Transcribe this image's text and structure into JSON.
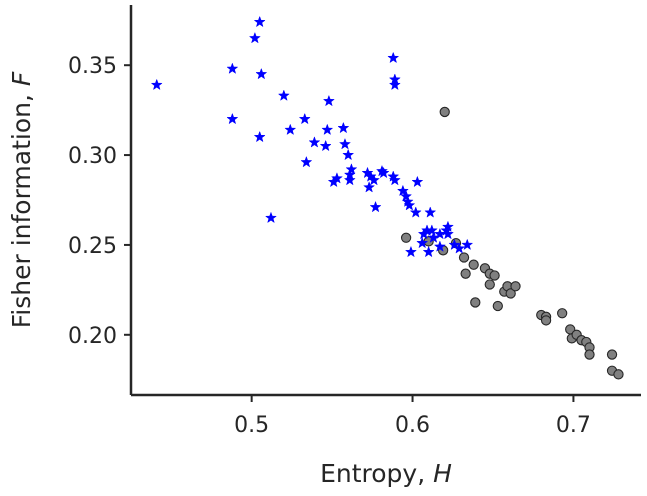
{
  "chart_data": {
    "type": "scatter",
    "xlabel": {
      "text": "Entropy, ",
      "var": "H"
    },
    "ylabel": {
      "text": "Fisher information, ",
      "var": "F"
    },
    "xlim": [
      0.425,
      0.742
    ],
    "ylim": [
      0.1665,
      0.3835
    ],
    "xticks": [
      0.5,
      0.6,
      0.7
    ],
    "xtick_labels": [
      "0.5",
      "0.6",
      "0.7"
    ],
    "yticks": [
      0.2,
      0.25,
      0.3,
      0.35
    ],
    "ytick_labels": [
      "0.20",
      "0.25",
      "0.30",
      "0.35"
    ],
    "grid": false,
    "series": [
      {
        "marker": "star",
        "color": "#0000ff",
        "points": [
          [
            0.441,
            0.339
          ],
          [
            0.488,
            0.348
          ],
          [
            0.488,
            0.32
          ],
          [
            0.502,
            0.365
          ],
          [
            0.505,
            0.374
          ],
          [
            0.506,
            0.345
          ],
          [
            0.505,
            0.31
          ],
          [
            0.512,
            0.265
          ],
          [
            0.52,
            0.333
          ],
          [
            0.524,
            0.314
          ],
          [
            0.533,
            0.32
          ],
          [
            0.534,
            0.296
          ],
          [
            0.539,
            0.307
          ],
          [
            0.546,
            0.305
          ],
          [
            0.547,
            0.314
          ],
          [
            0.548,
            0.33
          ],
          [
            0.551,
            0.285
          ],
          [
            0.553,
            0.287
          ],
          [
            0.557,
            0.315
          ],
          [
            0.558,
            0.306
          ],
          [
            0.56,
            0.3
          ],
          [
            0.561,
            0.289
          ],
          [
            0.561,
            0.286
          ],
          [
            0.562,
            0.292
          ],
          [
            0.572,
            0.29
          ],
          [
            0.573,
            0.282
          ],
          [
            0.574,
            0.288
          ],
          [
            0.576,
            0.286
          ],
          [
            0.577,
            0.271
          ],
          [
            0.581,
            0.291
          ],
          [
            0.582,
            0.29
          ],
          [
            0.588,
            0.354
          ],
          [
            0.589,
            0.342
          ],
          [
            0.589,
            0.339
          ],
          [
            0.588,
            0.288
          ],
          [
            0.589,
            0.286
          ],
          [
            0.594,
            0.28
          ],
          [
            0.596,
            0.277
          ],
          [
            0.597,
            0.274
          ],
          [
            0.598,
            0.272
          ],
          [
            0.602,
            0.268
          ],
          [
            0.603,
            0.285
          ],
          [
            0.599,
            0.246
          ],
          [
            0.606,
            0.251
          ],
          [
            0.607,
            0.256
          ],
          [
            0.609,
            0.258
          ],
          [
            0.611,
            0.268
          ],
          [
            0.61,
            0.246
          ],
          [
            0.612,
            0.258
          ],
          [
            0.613,
            0.254
          ],
          [
            0.617,
            0.249
          ],
          [
            0.617,
            0.256
          ],
          [
            0.621,
            0.258
          ],
          [
            0.622,
            0.26
          ],
          [
            0.622,
            0.256
          ],
          [
            0.626,
            0.25
          ],
          [
            0.629,
            0.248
          ],
          [
            0.634,
            0.25
          ]
        ]
      },
      {
        "marker": "circle",
        "color": "#808080",
        "points": [
          [
            0.62,
            0.324
          ],
          [
            0.596,
            0.254
          ],
          [
            0.61,
            0.252
          ],
          [
            0.619,
            0.247
          ],
          [
            0.627,
            0.251
          ],
          [
            0.632,
            0.243
          ],
          [
            0.633,
            0.234
          ],
          [
            0.638,
            0.239
          ],
          [
            0.639,
            0.218
          ],
          [
            0.645,
            0.237
          ],
          [
            0.648,
            0.234
          ],
          [
            0.648,
            0.228
          ],
          [
            0.651,
            0.233
          ],
          [
            0.653,
            0.216
          ],
          [
            0.657,
            0.224
          ],
          [
            0.659,
            0.227
          ],
          [
            0.661,
            0.223
          ],
          [
            0.664,
            0.227
          ],
          [
            0.68,
            0.211
          ],
          [
            0.683,
            0.21
          ],
          [
            0.683,
            0.208
          ],
          [
            0.693,
            0.212
          ],
          [
            0.698,
            0.203
          ],
          [
            0.699,
            0.198
          ],
          [
            0.702,
            0.2
          ],
          [
            0.705,
            0.197
          ],
          [
            0.708,
            0.196
          ],
          [
            0.71,
            0.193
          ],
          [
            0.71,
            0.189
          ],
          [
            0.724,
            0.189
          ],
          [
            0.724,
            0.18
          ],
          [
            0.728,
            0.178
          ]
        ]
      }
    ]
  }
}
